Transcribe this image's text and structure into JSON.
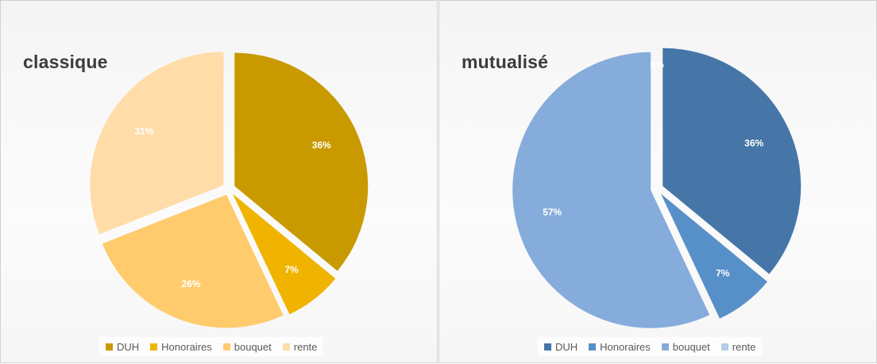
{
  "chart_data": [
    {
      "type": "pie",
      "title": "classique",
      "categories": [
        "DUH",
        "Honoraires",
        "bouquet",
        "rente"
      ],
      "values": [
        36,
        7,
        26,
        31
      ],
      "data_labels": [
        "36%",
        "7%",
        "26%",
        "31%"
      ],
      "colors": [
        "#C89A00",
        "#F0B400",
        "#FFCB6C",
        "#FFDCA8"
      ],
      "exploded": true,
      "legend_position": "bottom",
      "start_angle": "top, clockwise"
    },
    {
      "type": "pie",
      "title": "mutualisé",
      "categories": [
        "DUH",
        "Honoraires",
        "bouquet",
        "rente"
      ],
      "values": [
        36,
        7,
        57,
        0
      ],
      "data_labels": [
        "36%",
        "7%",
        "57%",
        "0%"
      ],
      "colors": [
        "#4676A8",
        "#5790C8",
        "#86ACDB",
        "#B5CDE9"
      ],
      "exploded": true,
      "legend_position": "bottom",
      "start_angle": "top, clockwise"
    }
  ]
}
